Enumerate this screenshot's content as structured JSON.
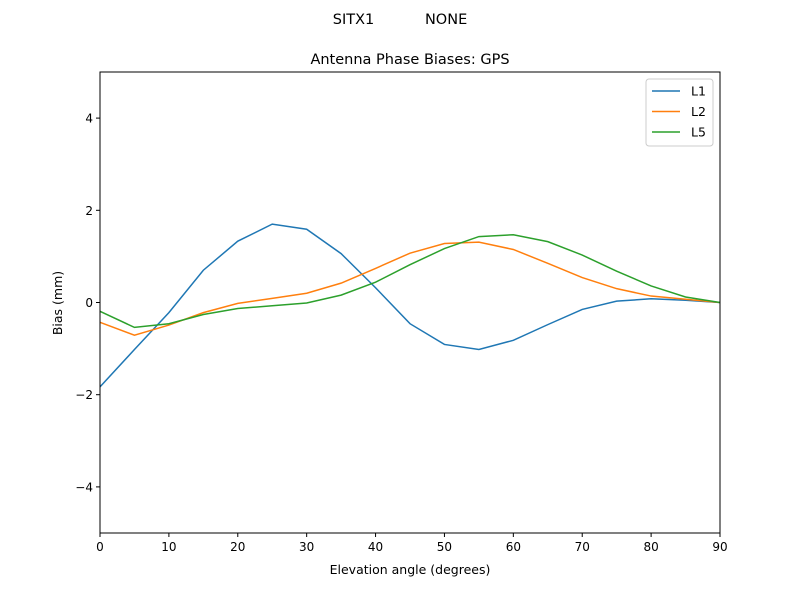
{
  "chart_data": {
    "type": "line",
    "suptitle": "SITX1           NONE",
    "title": "Antenna Phase Biases: GPS",
    "xlabel": "Elevation angle (degrees)",
    "ylabel": "Bias (mm)",
    "xlim": [
      0,
      90
    ],
    "ylim": [
      -5,
      5
    ],
    "xticks": [
      0,
      10,
      20,
      30,
      40,
      50,
      60,
      70,
      80,
      90
    ],
    "yticks": [
      -4,
      -2,
      0,
      2,
      4
    ],
    "ytick_labels": [
      "−4",
      "−2",
      "0",
      "2",
      "4"
    ],
    "grid": false,
    "legend_position": "top-right",
    "x": [
      0,
      5,
      10,
      15,
      20,
      25,
      30,
      35,
      40,
      45,
      50,
      55,
      60,
      65,
      70,
      75,
      80,
      85,
      90
    ],
    "series": [
      {
        "name": "L1",
        "color": "#1f77b4",
        "values": [
          -1.83,
          -1.02,
          -0.22,
          0.7,
          1.33,
          1.7,
          1.59,
          1.06,
          0.32,
          -0.46,
          -0.91,
          -1.02,
          -0.82,
          -0.48,
          -0.15,
          0.03,
          0.08,
          0.05,
          0.0
        ]
      },
      {
        "name": "L2",
        "color": "#ff7f0e",
        "values": [
          -0.43,
          -0.71,
          -0.49,
          -0.22,
          -0.02,
          0.09,
          0.2,
          0.42,
          0.74,
          1.07,
          1.28,
          1.31,
          1.15,
          0.85,
          0.54,
          0.3,
          0.14,
          0.07,
          0.0
        ]
      },
      {
        "name": "L5",
        "color": "#2ca02c",
        "values": [
          -0.19,
          -0.54,
          -0.46,
          -0.26,
          -0.13,
          -0.07,
          -0.01,
          0.16,
          0.44,
          0.82,
          1.17,
          1.43,
          1.47,
          1.32,
          1.03,
          0.68,
          0.36,
          0.12,
          0.0
        ]
      }
    ]
  }
}
